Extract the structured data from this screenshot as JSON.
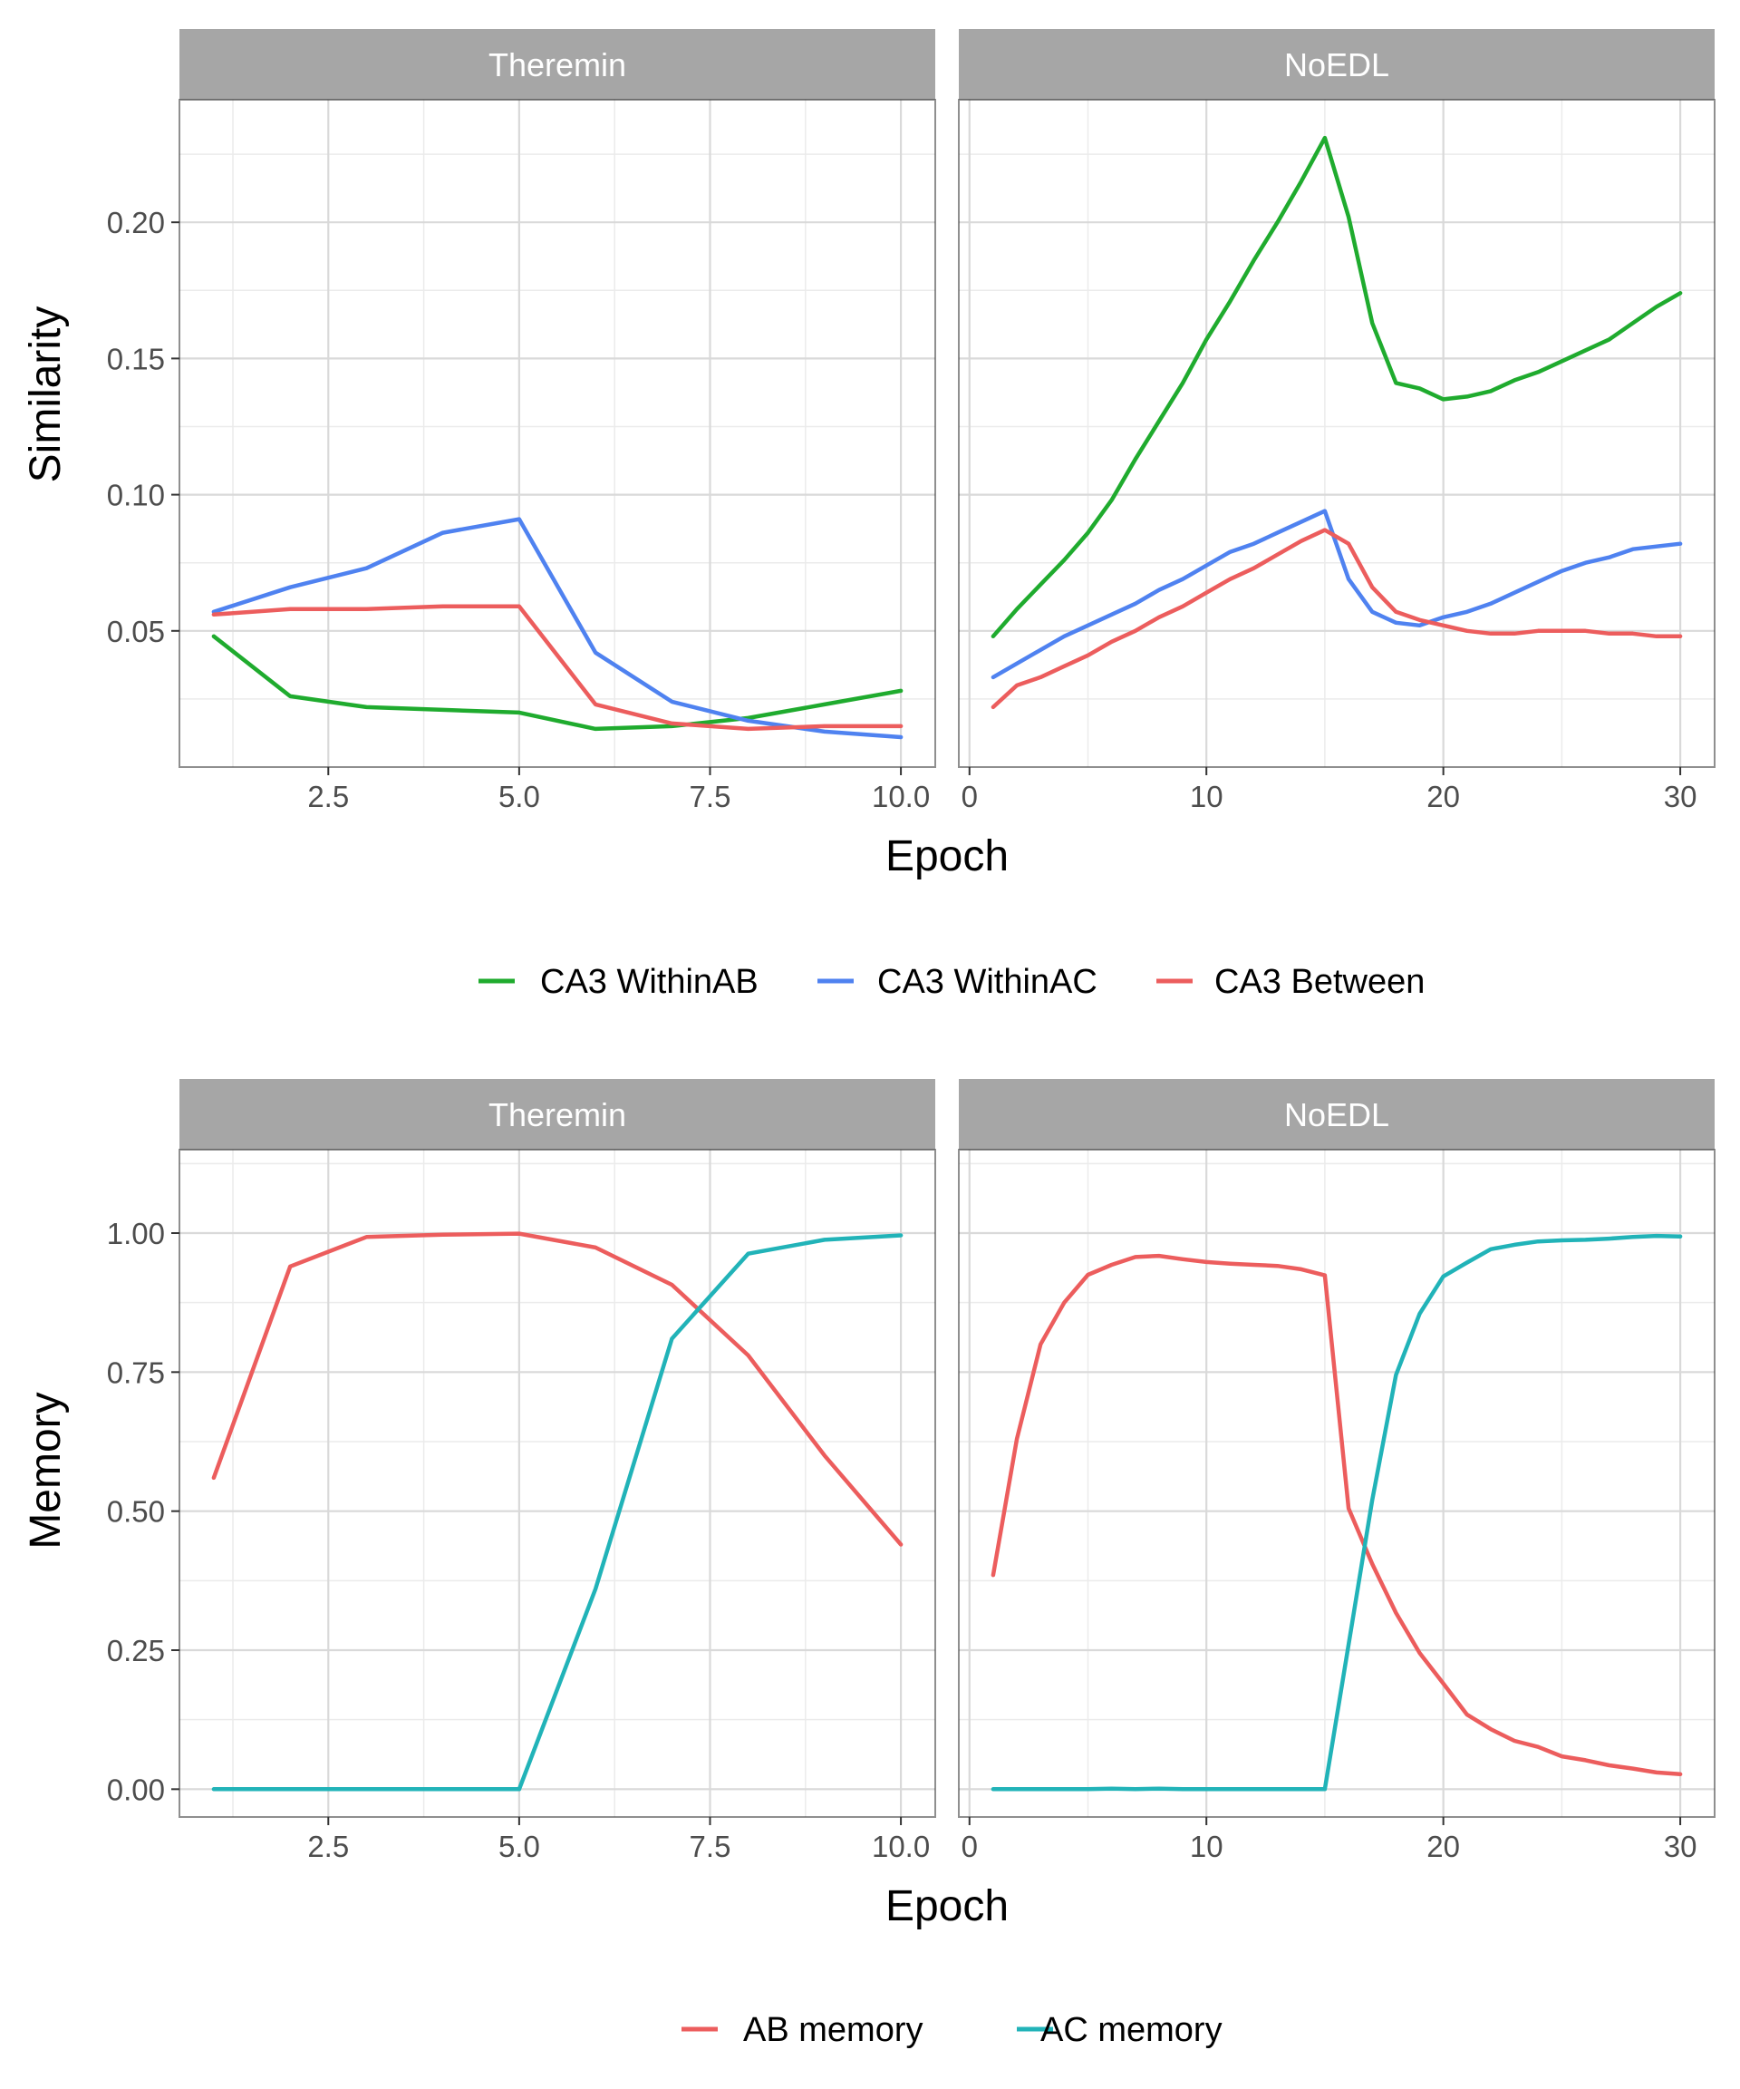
{
  "chart_data": [
    {
      "type": "line",
      "ylabel": "Similarity",
      "xlabel": "Epoch",
      "series_colors": [
        "#1fab2e",
        "#4f82f0",
        "#ec5d5d"
      ],
      "legend": {
        "position": "bottom",
        "entries": [
          {
            "name": "CA3 WithinAB",
            "color": "#1fab2e"
          },
          {
            "name": "CA3 WithinAC",
            "color": "#4f82f0"
          },
          {
            "name": "CA3 Between",
            "color": "#ec5d5d"
          }
        ]
      },
      "ylim": [
        0.0,
        0.245
      ],
      "yticks": [
        0.05,
        0.1,
        0.15,
        0.2
      ],
      "ytick_labels": [
        "0.05",
        "0.10",
        "0.15",
        "0.20"
      ],
      "grid": true,
      "panels": [
        {
          "title": "Theremin",
          "xlim": [
            0.55,
            10.45
          ],
          "xticks": [
            2.5,
            5.0,
            7.5,
            10.0
          ],
          "xtick_labels": [
            "2.5",
            "5.0",
            "7.5",
            "10.0"
          ],
          "x": [
            1,
            2,
            3,
            4,
            5,
            6,
            7,
            8,
            9,
            10
          ],
          "series": [
            {
              "values": [
                0.048,
                0.026,
                0.022,
                0.021,
                0.02,
                0.014,
                0.015,
                0.018,
                0.023,
                0.028
              ]
            },
            {
              "values": [
                0.057,
                0.066,
                0.073,
                0.086,
                0.091,
                0.042,
                0.024,
                0.017,
                0.013,
                0.011
              ]
            },
            {
              "values": [
                0.056,
                0.058,
                0.058,
                0.059,
                0.059,
                0.023,
                0.016,
                0.014,
                0.015,
                0.015
              ]
            }
          ]
        },
        {
          "title": "NoEDL",
          "xlim": [
            -0.45,
            31.45
          ],
          "xticks": [
            0,
            10,
            20,
            30
          ],
          "xtick_labels": [
            "0",
            "10",
            "20",
            "30"
          ],
          "x": [
            1,
            2,
            3,
            4,
            5,
            6,
            7,
            8,
            9,
            10,
            11,
            12,
            13,
            14,
            15,
            16,
            17,
            18,
            19,
            20,
            21,
            22,
            23,
            24,
            25,
            26,
            27,
            28,
            29,
            30
          ],
          "series": [
            {
              "values": [
                0.048,
                0.058,
                0.067,
                0.076,
                0.086,
                0.098,
                0.113,
                0.127,
                0.141,
                0.157,
                0.171,
                0.186,
                0.2,
                0.215,
                0.231,
                0.202,
                0.163,
                0.141,
                0.139,
                0.135,
                0.136,
                0.138,
                0.142,
                0.145,
                0.149,
                0.153,
                0.157,
                0.163,
                0.169,
                0.174
              ]
            },
            {
              "values": [
                0.033,
                0.038,
                0.043,
                0.048,
                0.052,
                0.056,
                0.06,
                0.065,
                0.069,
                0.074,
                0.079,
                0.082,
                0.086,
                0.09,
                0.094,
                0.069,
                0.057,
                0.053,
                0.052,
                0.055,
                0.057,
                0.06,
                0.064,
                0.068,
                0.072,
                0.075,
                0.077,
                0.08,
                0.081,
                0.082
              ]
            },
            {
              "values": [
                0.022,
                0.03,
                0.033,
                0.037,
                0.041,
                0.046,
                0.05,
                0.055,
                0.059,
                0.064,
                0.069,
                0.073,
                0.078,
                0.083,
                0.087,
                0.082,
                0.066,
                0.057,
                0.054,
                0.052,
                0.05,
                0.049,
                0.049,
                0.05,
                0.05,
                0.05,
                0.049,
                0.049,
                0.048,
                0.048
              ]
            }
          ]
        }
      ]
    },
    {
      "type": "line",
      "ylabel": "Memory",
      "xlabel": "Epoch",
      "series_colors": [
        "#ec5d5d",
        "#21b3b8"
      ],
      "legend": {
        "position": "bottom",
        "entries": [
          {
            "name": "AB memory",
            "color": "#ec5d5d"
          },
          {
            "name": "AC memory",
            "color": "#21b3b8"
          }
        ]
      },
      "ylim": [
        -0.05,
        1.15
      ],
      "yticks": [
        0.0,
        0.25,
        0.5,
        0.75,
        1.0
      ],
      "ytick_labels": [
        "0.00",
        "0.25",
        "0.50",
        "0.75",
        "1.00"
      ],
      "grid": true,
      "panels": [
        {
          "title": "Theremin",
          "xlim": [
            0.55,
            10.45
          ],
          "xticks": [
            2.5,
            5.0,
            7.5,
            10.0
          ],
          "xtick_labels": [
            "2.5",
            "5.0",
            "7.5",
            "10.0"
          ],
          "x": [
            1,
            2,
            3,
            4,
            5,
            6,
            7,
            8,
            9,
            10
          ],
          "series": [
            {
              "values": [
                0.56,
                0.94,
                0.993,
                0.997,
                0.999,
                0.974,
                0.907,
                0.78,
                0.6,
                0.44
              ]
            },
            {
              "values": [
                0.0,
                0.0,
                0.0,
                0.0,
                0.0,
                0.36,
                0.81,
                0.963,
                0.988,
                0.996
              ]
            }
          ]
        },
        {
          "title": "NoEDL",
          "xlim": [
            -0.45,
            31.45
          ],
          "xticks": [
            0,
            10,
            20,
            30
          ],
          "xtick_labels": [
            "0",
            "10",
            "20",
            "30"
          ],
          "x": [
            1,
            2,
            3,
            4,
            5,
            6,
            7,
            8,
            9,
            10,
            11,
            12,
            13,
            14,
            15,
            16,
            17,
            18,
            19,
            20,
            21,
            22,
            23,
            24,
            25,
            26,
            27,
            28,
            29,
            30
          ],
          "series": [
            {
              "values": [
                0.385,
                0.63,
                0.8,
                0.875,
                0.925,
                0.943,
                0.957,
                0.959,
                0.953,
                0.948,
                0.945,
                0.943,
                0.941,
                0.935,
                0.924,
                0.505,
                0.405,
                0.317,
                0.245,
                0.19,
                0.134,
                0.108,
                0.087,
                0.076,
                0.059,
                0.052,
                0.043,
                0.037,
                0.03,
                0.027
              ]
            },
            {
              "values": [
                0.0,
                0.0,
                0.0,
                0.0,
                0.0,
                0.001,
                0.0,
                0.001,
                0.0,
                0.0,
                0.0,
                0.0,
                0.0,
                0.0,
                0.0,
                0.26,
                0.52,
                0.745,
                0.855,
                0.922,
                0.947,
                0.971,
                0.979,
                0.985,
                0.987,
                0.988,
                0.99,
                0.993,
                0.995,
                0.994
              ]
            }
          ]
        }
      ]
    }
  ]
}
